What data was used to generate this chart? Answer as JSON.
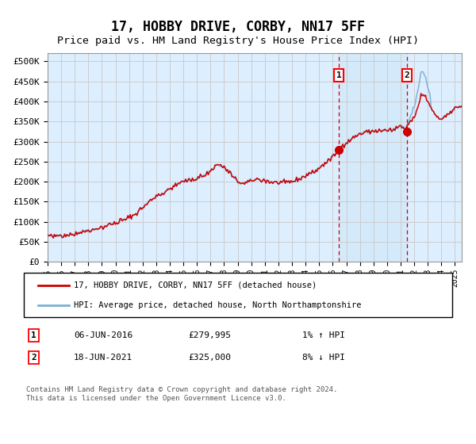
{
  "title": "17, HOBBY DRIVE, CORBY, NN17 5FF",
  "subtitle": "Price paid vs. HM Land Registry's House Price Index (HPI)",
  "title_fontsize": 12,
  "subtitle_fontsize": 9.5,
  "ylim": [
    0,
    520000
  ],
  "xlim_start": 1995.0,
  "xlim_end": 2025.5,
  "yticks": [
    0,
    50000,
    100000,
    150000,
    200000,
    250000,
    300000,
    350000,
    400000,
    450000,
    500000
  ],
  "ytick_labels": [
    "£0",
    "£50K",
    "£100K",
    "£150K",
    "£200K",
    "£250K",
    "£300K",
    "£350K",
    "£400K",
    "£450K",
    "£500K"
  ],
  "xtick_years": [
    1995,
    1996,
    1997,
    1998,
    1999,
    2000,
    2001,
    2002,
    2003,
    2004,
    2005,
    2006,
    2007,
    2008,
    2009,
    2010,
    2011,
    2012,
    2013,
    2014,
    2015,
    2016,
    2017,
    2018,
    2019,
    2020,
    2021,
    2022,
    2023,
    2024,
    2025
  ],
  "hpi_color": "#7ab0d4",
  "price_color": "#cc0000",
  "grid_color": "#cccccc",
  "bg_color": "#ddeeff",
  "sale1_x": 2016.44,
  "sale1_y": 279995,
  "sale2_x": 2021.46,
  "sale2_y": 325000,
  "sale1_label": "1",
  "sale2_label": "2",
  "sale1_date": "06-JUN-2016",
  "sale1_price": "£279,995",
  "sale1_hpi": "1% ↑ HPI",
  "sale2_date": "18-JUN-2021",
  "sale2_price": "£325,000",
  "sale2_hpi": "8% ↓ HPI",
  "legend_line1": "17, HOBBY DRIVE, CORBY, NN17 5FF (detached house)",
  "legend_line2": "HPI: Average price, detached house, North Northamptonshire",
  "footnote": "Contains HM Land Registry data © Crown copyright and database right 2024.\nThis data is licensed under the Open Government Licence v3.0."
}
